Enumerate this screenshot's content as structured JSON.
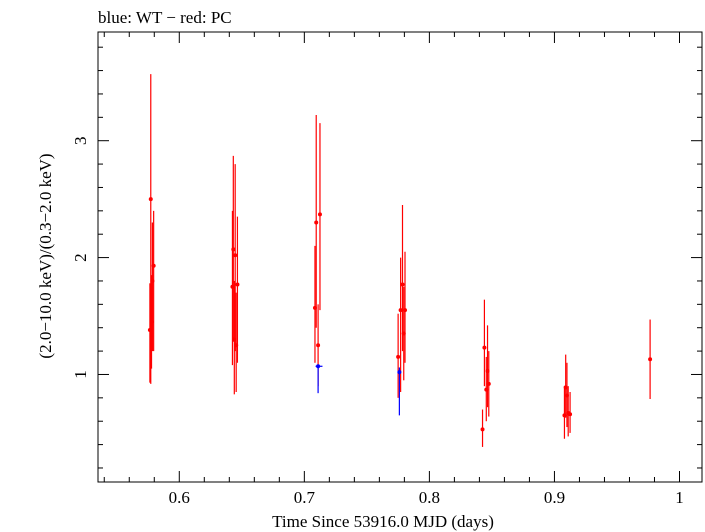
{
  "chart_data": {
    "type": "scatter",
    "title": "blue: WT − red: PC",
    "xlabel": "Time Since 53916.0 MJD (days)",
    "ylabel": "(2.0−10.0 keV)/(0.3−2.0 keV)",
    "xlim": [
      0.535,
      1.018
    ],
    "ylim": [
      0.08,
      3.93
    ],
    "xticks": [
      0.6,
      0.7,
      0.8,
      0.9,
      1
    ],
    "xtick_labels": [
      "0.6",
      "0.7",
      "0.8",
      "0.9",
      "1"
    ],
    "yticks": [
      1,
      2,
      3
    ],
    "ytick_labels": [
      "1",
      "2",
      "3"
    ],
    "grid": false,
    "series": [
      {
        "color": "#ff0000",
        "points": [
          {
            "x": 0.5765,
            "y": 1.38,
            "ylo": 0.93,
            "yhi": 1.78
          },
          {
            "x": 0.5772,
            "y": 2.5,
            "ylo": 0.92,
            "yhi": 3.57
          },
          {
            "x": 0.5778,
            "y": 1.45,
            "ylo": 1.05,
            "yhi": 1.85
          },
          {
            "x": 0.5785,
            "y": 1.8,
            "ylo": 1.2,
            "yhi": 2.3
          },
          {
            "x": 0.5795,
            "y": 1.93,
            "ylo": 1.2,
            "yhi": 2.4
          },
          {
            "x": 0.6425,
            "y": 1.75,
            "ylo": 1.08,
            "yhi": 2.4
          },
          {
            "x": 0.6432,
            "y": 2.07,
            "ylo": 1.28,
            "yhi": 2.87
          },
          {
            "x": 0.644,
            "y": 1.3,
            "ylo": 0.83,
            "yhi": 1.8
          },
          {
            "x": 0.6447,
            "y": 2.02,
            "ylo": 1.2,
            "yhi": 2.8
          },
          {
            "x": 0.6455,
            "y": 1.25,
            "ylo": 0.85,
            "yhi": 1.7
          },
          {
            "x": 0.6465,
            "y": 1.77,
            "ylo": 1.1,
            "yhi": 2.35
          },
          {
            "x": 0.7085,
            "y": 1.57,
            "ylo": 1.1,
            "yhi": 2.1
          },
          {
            "x": 0.7095,
            "y": 2.3,
            "ylo": 1.4,
            "yhi": 3.22
          },
          {
            "x": 0.711,
            "y": 1.25,
            "ylo": 0.9,
            "yhi": 1.6
          },
          {
            "x": 0.7125,
            "y": 2.37,
            "ylo": 1.55,
            "yhi": 3.15
          },
          {
            "x": 0.775,
            "y": 1.15,
            "ylo": 0.8,
            "yhi": 1.52
          },
          {
            "x": 0.777,
            "y": 1.55,
            "ylo": 0.85,
            "yhi": 2.0
          },
          {
            "x": 0.7785,
            "y": 1.77,
            "ylo": 1.2,
            "yhi": 2.45
          },
          {
            "x": 0.7795,
            "y": 1.35,
            "ylo": 0.95,
            "yhi": 1.75
          },
          {
            "x": 0.7805,
            "y": 1.55,
            "ylo": 1.1,
            "yhi": 2.05
          },
          {
            "x": 0.8425,
            "y": 0.53,
            "ylo": 0.38,
            "yhi": 0.7
          },
          {
            "x": 0.844,
            "y": 1.23,
            "ylo": 0.9,
            "yhi": 1.64
          },
          {
            "x": 0.8455,
            "y": 0.87,
            "ylo": 0.6,
            "yhi": 1.15
          },
          {
            "x": 0.8465,
            "y": 1.03,
            "ylo": 0.72,
            "yhi": 1.42
          },
          {
            "x": 0.8475,
            "y": 0.92,
            "ylo": 0.64,
            "yhi": 1.2
          },
          {
            "x": 0.908,
            "y": 0.65,
            "ylo": 0.45,
            "yhi": 0.9
          },
          {
            "x": 0.909,
            "y": 0.89,
            "ylo": 0.63,
            "yhi": 1.17
          },
          {
            "x": 0.91,
            "y": 0.82,
            "ylo": 0.55,
            "yhi": 1.1
          },
          {
            "x": 0.911,
            "y": 0.67,
            "ylo": 0.47,
            "yhi": 0.9
          },
          {
            "x": 0.9125,
            "y": 0.66,
            "ylo": 0.5,
            "yhi": 0.85
          },
          {
            "x": 0.9765,
            "y": 1.13,
            "ylo": 0.79,
            "yhi": 1.47
          }
        ]
      },
      {
        "color": "#0000ff",
        "points": [
          {
            "x": 0.711,
            "y": 1.07,
            "ylo": 0.84,
            "yhi": 1.08,
            "xlo": 0.709,
            "xhi": 0.7145
          },
          {
            "x": 0.776,
            "y": 1.02,
            "ylo": 0.65,
            "yhi": 1.06,
            "xlo": 0.7755,
            "xhi": 0.7765
          }
        ]
      }
    ]
  }
}
